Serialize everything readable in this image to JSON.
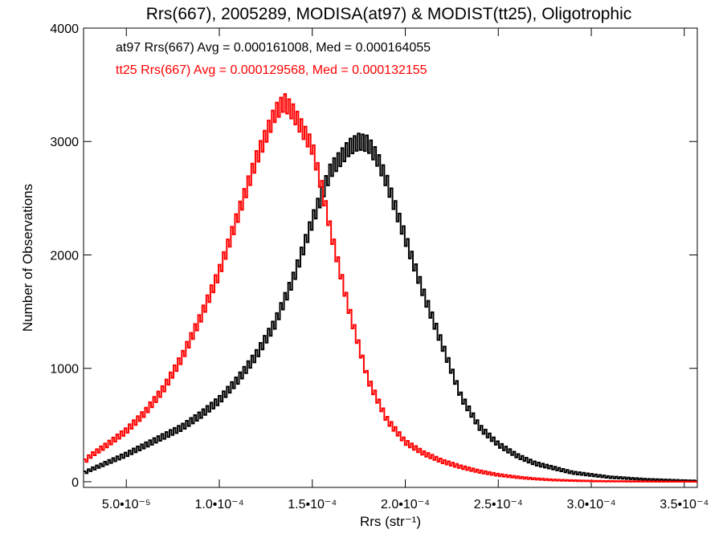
{
  "chart_data": {
    "type": "line",
    "title": "Rrs(667), 2005289, MODISA(at97) & MODIST(tt25), Oligotrophic",
    "xlabel": "Rrs (str⁻¹)",
    "ylabel": "Number of Observations",
    "xlim": [
      2.7e-05,
      0.000357
    ],
    "ylim": [
      -50,
      4000
    ],
    "x_ticks": [
      5e-05,
      0.0001,
      0.00015,
      0.0002,
      0.00025,
      0.0003,
      0.00035
    ],
    "x_tick_labels": [
      "5.0•10⁻⁵",
      "1.0•10⁻⁴",
      "1.5•10⁻⁴",
      "2.0•10⁻⁴",
      "2.5•10⁻⁴",
      "3.0•10⁻⁴",
      "3.5•10⁻⁴"
    ],
    "y_ticks": [
      0,
      1000,
      2000,
      3000,
      4000
    ],
    "y_tick_labels": [
      "0",
      "1000",
      "2000",
      "3000",
      "4000"
    ],
    "grid": false,
    "legend_position": "top-left",
    "series": [
      {
        "name": "at97 Rrs(667) Avg = 0.000161008, Med = 0.000164055",
        "color": "#000000",
        "x": [
          2.8e-05,
          3e-05,
          4e-05,
          5e-05,
          6e-05,
          7e-05,
          8e-05,
          9e-05,
          0.0001,
          0.00011,
          0.00012,
          0.00013,
          0.00014,
          0.00015,
          0.00016,
          0.00017,
          0.000175,
          0.00018,
          0.000185,
          0.00019,
          0.0002,
          0.00021,
          0.00022,
          0.00023,
          0.00024,
          0.00025,
          0.00026,
          0.00027,
          0.00028,
          0.00029,
          0.0003,
          0.00031,
          0.00032,
          0.00033,
          0.00034,
          0.00035,
          0.000356
        ],
        "y": [
          80,
          100,
          170,
          240,
          320,
          400,
          480,
          590,
          720,
          900,
          1120,
          1400,
          1800,
          2300,
          2750,
          2950,
          3000,
          2980,
          2850,
          2650,
          2150,
          1650,
          1200,
          750,
          480,
          330,
          230,
          160,
          120,
          80,
          60,
          40,
          30,
          20,
          15,
          10,
          8
        ]
      },
      {
        "name": "tt25 Rrs(667) Avg = 0.000129568, Med = 0.000132155",
        "color": "#ff0000",
        "x": [
          2.8e-05,
          3e-05,
          4e-05,
          5e-05,
          6e-05,
          7e-05,
          8e-05,
          9e-05,
          0.0001,
          0.00011,
          0.00012,
          0.00013,
          0.000135,
          0.00014,
          0.000145,
          0.00015,
          0.000155,
          0.00016,
          0.00017,
          0.00018,
          0.00019,
          0.0002,
          0.00021,
          0.00022,
          0.00023,
          0.00024,
          0.00025,
          0.00026,
          0.00027,
          0.00028,
          0.00029,
          0.0003,
          0.00031,
          0.00032,
          0.00033,
          0.00034,
          0.00035,
          0.000356
        ],
        "y": [
          180,
          220,
          330,
          450,
          610,
          820,
          1100,
          1450,
          1850,
          2350,
          2850,
          3250,
          3350,
          3250,
          3100,
          2950,
          2600,
          2200,
          1500,
          900,
          550,
          350,
          250,
          180,
          130,
          90,
          60,
          40,
          25,
          15,
          10,
          6,
          4,
          3,
          2,
          1,
          1,
          0
        ]
      }
    ]
  }
}
